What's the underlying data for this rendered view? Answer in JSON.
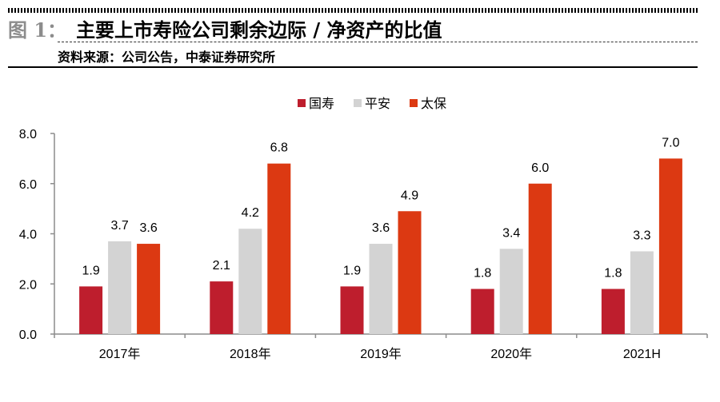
{
  "header": {
    "figure_label": "图 1：",
    "figure_title": "主要上市寿险公司剩余边际 / 净资产的比值",
    "source": "资料来源：公司公告，中泰证券研究所"
  },
  "chart_data": {
    "type": "bar",
    "title": "主要上市寿险公司剩余边际 / 净资产的比值",
    "xlabel": "",
    "ylabel": "",
    "categories": [
      "2017年",
      "2018年",
      "2019年",
      "2020年",
      "2021H"
    ],
    "series": [
      {
        "name": "国寿",
        "color": "#BE1E2D",
        "values": [
          1.9,
          2.1,
          1.9,
          1.8,
          1.8
        ]
      },
      {
        "name": "平安",
        "color": "#D3D3D3",
        "values": [
          3.7,
          4.2,
          3.6,
          3.4,
          3.3
        ]
      },
      {
        "name": "太保",
        "color": "#DC3912",
        "values": [
          3.6,
          6.8,
          4.9,
          6.0,
          7.0
        ]
      }
    ],
    "ylim": [
      0,
      8
    ],
    "yticks": [
      "0.0",
      "2.0",
      "4.0",
      "6.0",
      "8.0"
    ],
    "ytick_values": [
      0,
      2,
      4,
      6,
      8
    ],
    "data_labels": true,
    "grid": false,
    "legend_position": "top-center"
  }
}
